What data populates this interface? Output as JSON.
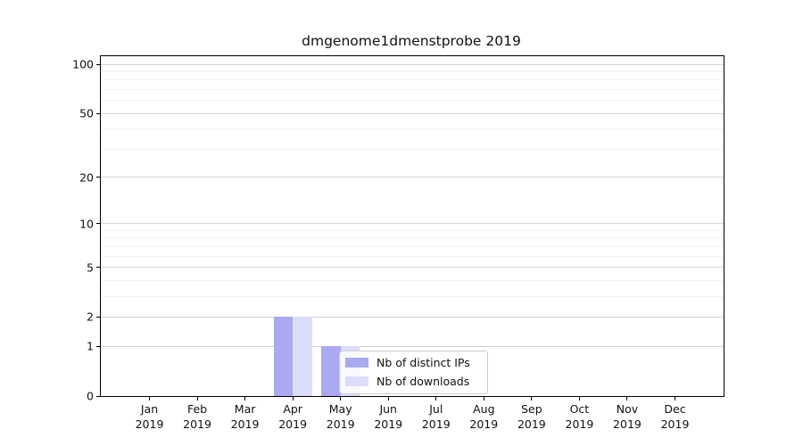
{
  "title": "dmgenome1dmenstprobe 2019",
  "chart_data": {
    "type": "bar",
    "title": "dmgenome1dmenstprobe 2019",
    "categories": [
      "Jan",
      "Feb",
      "Mar",
      "Apr",
      "May",
      "Jun",
      "Jul",
      "Aug",
      "Sep",
      "Oct",
      "Nov",
      "Dec"
    ],
    "x_tick_year": "2019",
    "series": [
      {
        "name": "Nb of distinct IPs",
        "color": "#a9aaf2",
        "values": [
          0,
          0,
          0,
          2,
          1,
          0,
          0,
          0,
          0,
          0,
          0,
          0
        ]
      },
      {
        "name": "Nb of downloads",
        "color": "#dcddfa",
        "values": [
          0,
          0,
          0,
          2,
          1,
          0,
          0,
          0,
          0,
          0,
          0,
          0
        ]
      }
    ],
    "y_scale": "log1p",
    "y_ticks": [
      0,
      1,
      2,
      5,
      10,
      20,
      50,
      100
    ],
    "y_minor_gridlines": [
      3,
      4,
      6,
      7,
      8,
      9,
      30,
      40,
      60,
      70,
      80,
      90
    ],
    "ylim": [
      0,
      112
    ],
    "grid": true,
    "legend_position": "inside lower-center"
  },
  "colors": {
    "bar_distinct_ips": "#a9aaf2",
    "bar_downloads": "#dcddfa",
    "grid_major": "#d4d4d4",
    "grid_minor": "#f0f0f0",
    "axis_line": "#000000",
    "text": "#111111",
    "legend_border": "#cccccc",
    "background": "#ffffff"
  }
}
